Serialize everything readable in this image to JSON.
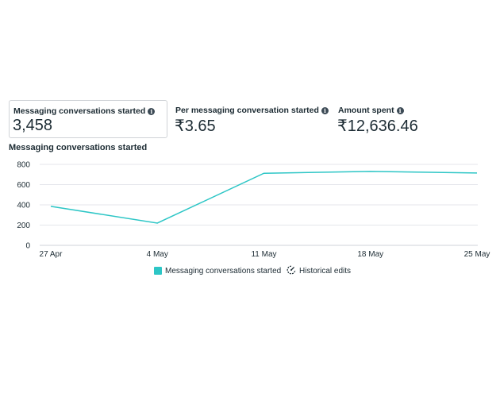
{
  "metrics": [
    {
      "label": "Messaging conversations started",
      "value": "3,458"
    },
    {
      "label": "Per messaging conversation started",
      "value": "₹3.65"
    },
    {
      "label": "Amount spent",
      "value": "₹12,636.46"
    }
  ],
  "chart_title": "Messaging conversations started",
  "legend": {
    "series_label": "Messaging conversations started",
    "historical_label": "Historical edits"
  },
  "colors": {
    "series": "#2dc6c6",
    "grid": "#e4e6eb",
    "text": "#1c2b33"
  },
  "chart_data": {
    "type": "line",
    "title": "Messaging conversations started",
    "x": [
      "27 Apr",
      "4 May",
      "11 May",
      "18 May",
      "25 May"
    ],
    "series": [
      {
        "name": "Messaging conversations started",
        "values": [
          385,
          220,
          712,
          730,
          715
        ]
      }
    ],
    "yticks": [
      0,
      200,
      400,
      600,
      800
    ],
    "ylim": [
      0,
      800
    ],
    "grid": true,
    "legend": "bottom"
  }
}
